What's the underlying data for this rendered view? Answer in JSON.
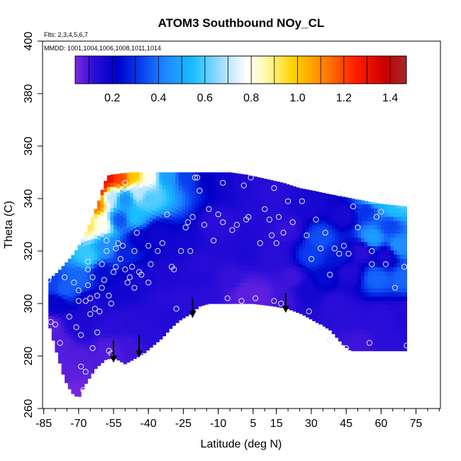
{
  "chart_data": {
    "type": "heatmap",
    "title": "ATOM3 Southbound NOy_CL",
    "flights_note": "Flts: 2,3,4,5,6,7",
    "mmdd_note": "MMDD: 1001,1004,1006,1008,1011,1014",
    "xlabel": "Latitude (deg N)",
    "ylabel": "Theta (C)",
    "xlim": [
      -85,
      85
    ],
    "ylim": [
      260,
      400
    ],
    "x_tick_labels": [
      "-85",
      "-70",
      "-55",
      "-40",
      "-25",
      "-10",
      "5",
      "15",
      "30",
      "45",
      "60",
      "75"
    ],
    "x_tick_values": [
      -85,
      -70,
      -55,
      -40,
      -25,
      -10,
      5,
      15,
      30,
      45,
      60,
      75
    ],
    "x_minor_step": 5,
    "y_ticks": [
      260,
      280,
      300,
      320,
      340,
      360,
      380,
      400
    ],
    "colorbar": {
      "range": [
        0.04,
        1.47
      ],
      "ticks": [
        0.2,
        0.4,
        0.6,
        0.8,
        1.0,
        1.2,
        1.4
      ],
      "tick_labels": [
        "0.2",
        "0.4",
        "0.6",
        "0.8",
        "1.0",
        "1.2",
        "1.4"
      ],
      "stops": [
        {
          "v": 0.04,
          "c": "#7b2be0"
        },
        {
          "v": 0.12,
          "c": "#2a0dd8"
        },
        {
          "v": 0.22,
          "c": "#0000c8"
        },
        {
          "v": 0.32,
          "c": "#0a3cf0"
        },
        {
          "v": 0.42,
          "c": "#1e82ff"
        },
        {
          "v": 0.55,
          "c": "#19beff"
        },
        {
          "v": 0.68,
          "c": "#aae0ff"
        },
        {
          "v": 0.78,
          "c": "#ffffff"
        },
        {
          "v": 0.86,
          "c": "#fffbb0"
        },
        {
          "v": 0.98,
          "c": "#ffd400"
        },
        {
          "v": 1.1,
          "c": "#ff8c00"
        },
        {
          "v": 1.25,
          "c": "#ff1e00"
        },
        {
          "v": 1.38,
          "c": "#cc0000"
        },
        {
          "v": 1.47,
          "c": "#9e2a2a"
        }
      ]
    },
    "domain": {
      "lat_range": [
        -83,
        71
      ],
      "theta_bottom": [
        [
          -83,
          293
        ],
        [
          -80,
          283
        ],
        [
          -76,
          271
        ],
        [
          -73,
          266
        ],
        [
          -70,
          264
        ],
        [
          -68,
          268
        ],
        [
          -63,
          275
        ],
        [
          -58,
          279
        ],
        [
          -54,
          279
        ],
        [
          -50,
          277
        ],
        [
          -46,
          279
        ],
        [
          -42,
          281
        ],
        [
          -38,
          284
        ],
        [
          -34,
          287
        ],
        [
          -30,
          291
        ],
        [
          -26,
          294
        ],
        [
          -22,
          296
        ],
        [
          -18,
          299
        ],
        [
          -14,
          300
        ],
        [
          -6,
          300
        ],
        [
          5,
          300
        ],
        [
          14,
          299
        ],
        [
          20,
          298
        ],
        [
          26,
          296
        ],
        [
          32,
          293
        ],
        [
          38,
          290
        ],
        [
          44,
          284
        ],
        [
          47,
          282
        ],
        [
          71,
          282
        ]
      ],
      "theta_top": [
        [
          -83,
          309
        ],
        [
          -79,
          312
        ],
        [
          -76,
          315
        ],
        [
          -72,
          319
        ],
        [
          -68,
          325
        ],
        [
          -64,
          333
        ],
        [
          -61,
          340
        ],
        [
          -59,
          346
        ],
        [
          -57,
          349
        ],
        [
          -48,
          350
        ],
        [
          -18,
          350
        ],
        [
          -5,
          350
        ],
        [
          3,
          349
        ],
        [
          18,
          346
        ],
        [
          25,
          344
        ],
        [
          31,
          343
        ],
        [
          36,
          342
        ],
        [
          42,
          341
        ],
        [
          48,
          340
        ],
        [
          54,
          339
        ],
        [
          60,
          338
        ],
        [
          71,
          337
        ]
      ]
    },
    "field_nodes": [
      [
        -82,
        292,
        0.07
      ],
      [
        -80,
        300,
        0.2
      ],
      [
        -82,
        308,
        0.33
      ],
      [
        -76,
        306,
        0.37
      ],
      [
        -78,
        285,
        0.08
      ],
      [
        -74,
        275,
        0.07
      ],
      [
        -70,
        266,
        0.05
      ],
      [
        -71,
        278,
        0.08
      ],
      [
        -70,
        292,
        0.15
      ],
      [
        -70,
        310,
        0.38
      ],
      [
        -66,
        318,
        0.58
      ],
      [
        -66,
        330,
        0.92
      ],
      [
        -63,
        338,
        1.15
      ],
      [
        -61,
        344,
        1.3
      ],
      [
        -57,
        348,
        1.3
      ],
      [
        -52,
        348,
        1.2
      ],
      [
        -46,
        349,
        1.0
      ],
      [
        -40,
        349,
        0.8
      ],
      [
        -32,
        349,
        0.48
      ],
      [
        -24,
        349,
        0.32
      ],
      [
        -15,
        349,
        0.22
      ],
      [
        -8,
        349,
        0.18
      ],
      [
        0,
        348,
        0.15
      ],
      [
        -56,
        341,
        0.7
      ],
      [
        -50,
        340,
        0.45
      ],
      [
        -44,
        342,
        0.7
      ],
      [
        -40,
        340,
        0.6
      ],
      [
        -46,
        333,
        0.55
      ],
      [
        -52,
        332,
        0.35
      ],
      [
        -60,
        330,
        0.8
      ],
      [
        -58,
        322,
        0.45
      ],
      [
        -50,
        320,
        0.28
      ],
      [
        -44,
        325,
        0.2
      ],
      [
        -36,
        327,
        0.18
      ],
      [
        -26,
        322,
        0.17
      ],
      [
        -60,
        312,
        0.24
      ],
      [
        -52,
        306,
        0.18
      ],
      [
        -44,
        310,
        0.16
      ],
      [
        -32,
        312,
        0.15
      ],
      [
        -20,
        310,
        0.14
      ],
      [
        -64,
        300,
        0.15
      ],
      [
        -54,
        292,
        0.12
      ],
      [
        -46,
        293,
        0.13
      ],
      [
        -34,
        300,
        0.13
      ],
      [
        -24,
        301,
        0.12
      ],
      [
        -56,
        282,
        0.08
      ],
      [
        -48,
        284,
        0.1
      ],
      [
        -40,
        290,
        0.13
      ],
      [
        -30,
        296,
        0.14
      ],
      [
        -16,
        302,
        0.12
      ],
      [
        -18,
        315,
        0.13
      ],
      [
        -10,
        330,
        0.12
      ],
      [
        -4,
        310,
        0.11
      ],
      [
        2,
        304,
        0.07
      ],
      [
        8,
        303,
        0.07
      ],
      [
        2,
        320,
        0.15
      ],
      [
        8,
        336,
        0.14
      ],
      [
        14,
        318,
        0.12
      ],
      [
        12,
        342,
        0.12
      ],
      [
        20,
        328,
        0.11
      ],
      [
        22,
        310,
        0.1
      ],
      [
        18,
        302,
        0.1
      ],
      [
        28,
        305,
        0.17
      ],
      [
        30,
        318,
        0.32
      ],
      [
        30,
        338,
        0.16
      ],
      [
        34,
        325,
        0.35
      ],
      [
        36,
        310,
        0.24
      ],
      [
        40,
        300,
        0.12
      ],
      [
        42,
        318,
        0.26
      ],
      [
        44,
        334,
        0.16
      ],
      [
        46,
        312,
        0.14
      ],
      [
        48,
        294,
        0.12
      ],
      [
        52,
        320,
        0.12
      ],
      [
        54,
        336,
        0.3
      ],
      [
        56,
        325,
        0.48
      ],
      [
        58,
        310,
        0.38
      ],
      [
        60,
        295,
        0.12
      ],
      [
        62,
        318,
        0.16
      ],
      [
        64,
        330,
        0.33
      ],
      [
        66,
        336,
        0.55
      ],
      [
        68,
        322,
        0.45
      ],
      [
        70,
        310,
        0.38
      ],
      [
        70,
        296,
        0.14
      ],
      [
        62,
        286,
        0.12
      ],
      [
        50,
        285,
        0.1
      ],
      [
        56,
        340,
        0.6
      ],
      [
        68,
        338,
        0.6
      ]
    ],
    "observation_points": [
      [
        -83,
        309
      ],
      [
        -82,
        293
      ],
      [
        -80,
        292
      ],
      [
        -78,
        285
      ],
      [
        -76,
        310
      ],
      [
        -74,
        295
      ],
      [
        -72,
        308
      ],
      [
        -71,
        291
      ],
      [
        -70,
        305
      ],
      [
        -70,
        301
      ],
      [
        -69,
        288
      ],
      [
        -69,
        276
      ],
      [
        -68,
        267
      ],
      [
        -67,
        274
      ],
      [
        -67,
        301
      ],
      [
        -66,
        307
      ],
      [
        -66,
        313
      ],
      [
        -66,
        316
      ],
      [
        -65,
        296
      ],
      [
        -65,
        302
      ],
      [
        -64,
        283
      ],
      [
        -64,
        310
      ],
      [
        -63,
        298
      ],
      [
        -62,
        289
      ],
      [
        -62,
        303
      ],
      [
        -61,
        297
      ],
      [
        -60,
        306
      ],
      [
        -60,
        315
      ],
      [
        -59,
        309
      ],
      [
        -58,
        320
      ],
      [
        -58,
        336
      ],
      [
        -58,
        324
      ],
      [
        -57,
        303
      ],
      [
        -57,
        282
      ],
      [
        -56,
        281
      ],
      [
        -56,
        300
      ],
      [
        -55,
        312
      ],
      [
        -54,
        314
      ],
      [
        -54,
        321
      ],
      [
        -53,
        323
      ],
      [
        -52,
        317
      ],
      [
        -51,
        322
      ],
      [
        -50,
        346
      ],
      [
        -50,
        313
      ],
      [
        -49,
        308
      ],
      [
        -48,
        310
      ],
      [
        -47,
        314
      ],
      [
        -46,
        320
      ],
      [
        -46,
        306
      ],
      [
        -45,
        327
      ],
      [
        -44,
        312
      ],
      [
        -43,
        311
      ],
      [
        -42,
        280
      ],
      [
        -40,
        322
      ],
      [
        -40,
        308
      ],
      [
        -39,
        315
      ],
      [
        -36,
        320
      ],
      [
        -34,
        323
      ],
      [
        -32,
        334
      ],
      [
        -30,
        314
      ],
      [
        -29,
        313
      ],
      [
        -28,
        298
      ],
      [
        -26,
        320
      ],
      [
        -24,
        329
      ],
      [
        -23,
        331
      ],
      [
        -22,
        320
      ],
      [
        -21,
        333
      ],
      [
        -20,
        348
      ],
      [
        -19,
        348
      ],
      [
        -18,
        343
      ],
      [
        -16,
        330
      ],
      [
        -14,
        336
      ],
      [
        -12,
        324
      ],
      [
        -10,
        334
      ],
      [
        -8,
        346
      ],
      [
        -8,
        331
      ],
      [
        -6,
        302
      ],
      [
        -4,
        328
      ],
      [
        -2,
        330
      ],
      [
        0,
        301
      ],
      [
        1,
        345
      ],
      [
        2,
        332
      ],
      [
        3,
        333
      ],
      [
        4,
        348
      ],
      [
        6,
        302
      ],
      [
        8,
        323
      ],
      [
        10,
        336
      ],
      [
        12,
        332
      ],
      [
        13,
        326
      ],
      [
        14,
        344
      ],
      [
        14,
        301
      ],
      [
        15,
        323
      ],
      [
        16,
        333
      ],
      [
        17,
        300
      ],
      [
        18,
        327
      ],
      [
        20,
        339
      ],
      [
        22,
        331
      ],
      [
        24,
        346
      ],
      [
        26,
        339
      ],
      [
        28,
        326
      ],
      [
        29,
        297
      ],
      [
        30,
        317
      ],
      [
        32,
        332
      ],
      [
        34,
        321
      ],
      [
        34,
        291
      ],
      [
        36,
        327
      ],
      [
        38,
        311
      ],
      [
        38,
        286
      ],
      [
        40,
        321
      ],
      [
        42,
        319
      ],
      [
        42,
        342
      ],
      [
        44,
        322
      ],
      [
        45,
        283
      ],
      [
        46,
        319
      ],
      [
        48,
        337
      ],
      [
        50,
        329
      ],
      [
        55,
        285
      ],
      [
        56,
        315
      ],
      [
        56,
        320
      ],
      [
        58,
        333
      ],
      [
        60,
        335
      ],
      [
        62,
        315
      ],
      [
        63,
        339
      ],
      [
        66,
        306
      ],
      [
        70,
        314
      ],
      [
        71,
        284
      ]
    ],
    "arrows": [
      {
        "lat": -55,
        "theta_top": 286,
        "theta_tip": 278
      },
      {
        "lat": -44,
        "theta_top": 288,
        "theta_tip": 280
      },
      {
        "lat": -21,
        "theta_top": 302,
        "theta_tip": 295
      },
      {
        "lat": 19,
        "theta_top": 304,
        "theta_tip": 297
      }
    ],
    "grid": false,
    "legend": "colorbar top inside plot"
  }
}
